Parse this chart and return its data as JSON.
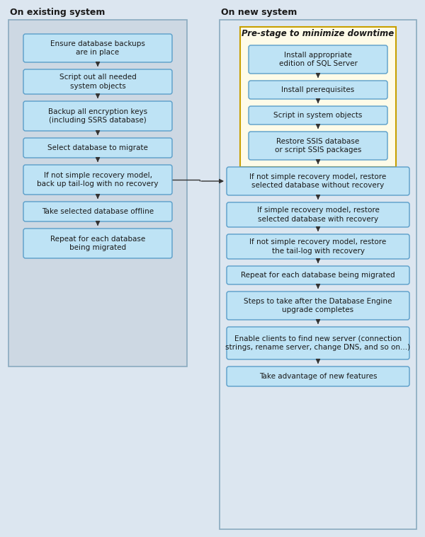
{
  "bg_color": "#dce6f0",
  "box_color_blue": "#bee3f5",
  "box_color_yellow": "#fefbe8",
  "box_border_blue": "#5a9ec9",
  "box_border_yellow": "#c8a000",
  "box_border_section": "#8aaabf",
  "text_color": "#1a1a1a",
  "arrow_color": "#333333",
  "title_left": "On existing system",
  "title_right": "On new system",
  "prestage_label": "Pre-stage to minimize downtime",
  "left_section_bg": "#d0dce8",
  "right_section_bg": "#dce6f0",
  "left_boxes": [
    "Ensure database backups\nare in place",
    "Script out all needed\nsystem objects",
    "Backup all encryption keys\n(including SSRS database)",
    "Select database to migrate",
    "If not simple recovery model,\nback up tail-log with no recovery",
    "Take selected database offline",
    "Repeat for each database\nbeing migrated"
  ],
  "prestage_boxes": [
    "Install appropriate\nedition of SQL Server",
    "Install prerequisites",
    "Script in system objects",
    "Restore SSIS database\nor script SSIS packages"
  ],
  "right_boxes": [
    "If not simple recovery model, restore\nselected database without recovery",
    "If simple recovery model, restore\nselected database with recovery",
    "If not simple recovery model, restore\nthe tail-log with recovery",
    "Repeat for each database being migrated",
    "Steps to take after the Database Engine\nupgrade completes",
    "Enable clients to find new server (connection\nstrings, rename server, change DNS, and so on...)",
    "Take advantage of new features"
  ]
}
